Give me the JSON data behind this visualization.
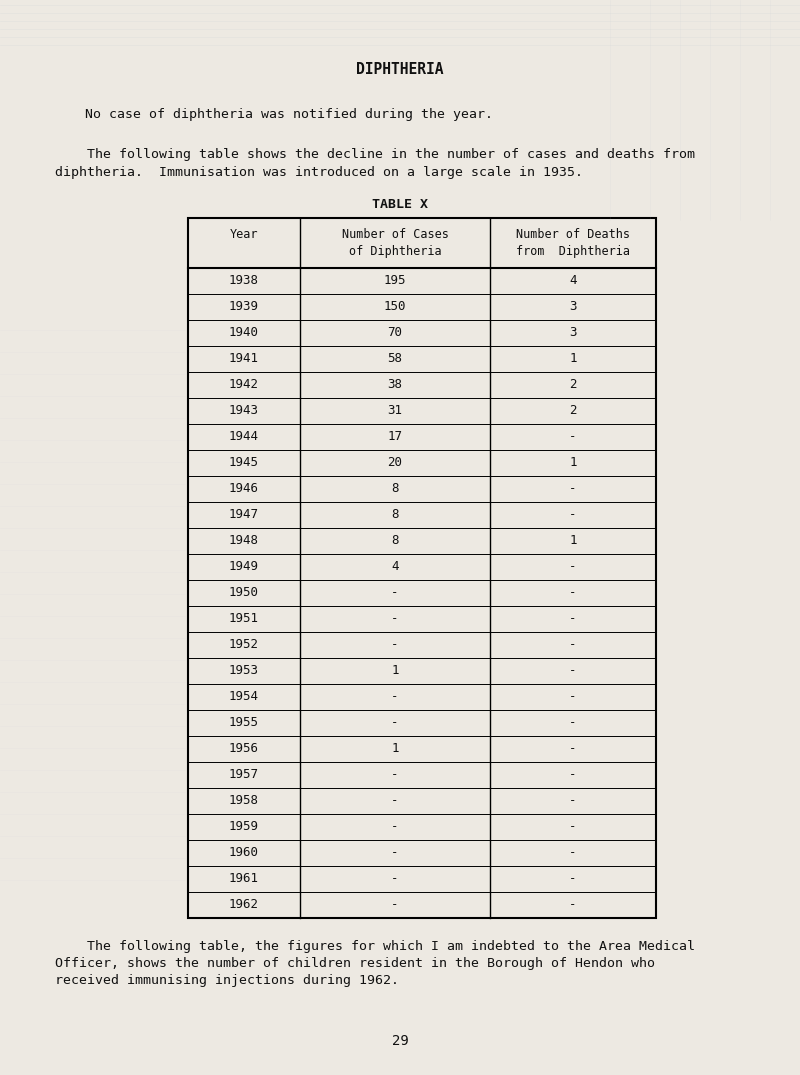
{
  "title": "DIPHTHERIA",
  "para1": "No case of diphtheria was notified during the year.",
  "para2_line1": "    The following table shows the decline in the number of cases and deaths from",
  "para2_line2": "diphtheria.  Immunisation was introduced on a large scale in 1935.",
  "table_title": "TABLE X",
  "col_headers_row1": [
    "Year",
    "Number of Cases",
    "Number of Deaths"
  ],
  "col_headers_row2": [
    "",
    "of Diphtheria",
    "from  Diphtheria"
  ],
  "rows": [
    [
      "1938",
      "195",
      "4"
    ],
    [
      "1939",
      "150",
      "3"
    ],
    [
      "1940",
      "70",
      "3"
    ],
    [
      "1941",
      "58",
      "1"
    ],
    [
      "1942",
      "38",
      "2"
    ],
    [
      "1943",
      "31",
      "2"
    ],
    [
      "1944",
      "17",
      "-"
    ],
    [
      "1945",
      "20",
      "1"
    ],
    [
      "1946",
      "8",
      "-"
    ],
    [
      "1947",
      "8",
      "-"
    ],
    [
      "1948",
      "8",
      "1"
    ],
    [
      "1949",
      "4",
      "-"
    ],
    [
      "1950",
      "-",
      "-"
    ],
    [
      "1951",
      "-",
      "-"
    ],
    [
      "1952",
      "-",
      "-"
    ],
    [
      "1953",
      "1",
      "-"
    ],
    [
      "1954",
      "-",
      "-"
    ],
    [
      "1955",
      "-",
      "-"
    ],
    [
      "1956",
      "1",
      "-"
    ],
    [
      "1957",
      "-",
      "-"
    ],
    [
      "1958",
      "-",
      "-"
    ],
    [
      "1959",
      "-",
      "-"
    ],
    [
      "1960",
      "-",
      "-"
    ],
    [
      "1961",
      "-",
      "-"
    ],
    [
      "1962",
      "-",
      "-"
    ]
  ],
  "para3_line1": "    The following table, the figures for which I am indebted to the Area Medical",
  "para3_line2": "Officer, shows the number of children resident in the Borough of Hendon who",
  "para3_line3": "received immunising injections during 1962.",
  "page_number": "29",
  "bg_color": "#ede9e2",
  "text_color": "#111111",
  "font_size_title": 10.5,
  "font_size_body": 9.5,
  "font_size_table_header": 8.5,
  "font_size_table_data": 9.0,
  "font_size_page": 10
}
